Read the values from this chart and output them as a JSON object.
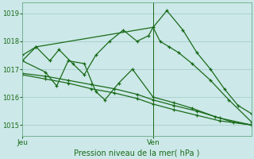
{
  "bg_color": "#cce8e8",
  "grid_color": "#9fc8c8",
  "line_color": "#1a6b1a",
  "xlabel": "Pression niveau de la mer( hPa )",
  "ylim": [
    1014.6,
    1019.4
  ],
  "yticks": [
    1015,
    1016,
    1017,
    1018,
    1019
  ],
  "xlim": [
    0,
    1.0
  ],
  "xtick_labels": [
    "Jeu",
    "Ven"
  ],
  "xtick_positions": [
    0.0,
    0.57
  ],
  "vline_x": 0.57,
  "series": [
    {
      "x": [
        0.0,
        0.06,
        0.57,
        0.63,
        0.7,
        0.76,
        0.82,
        0.88,
        0.94,
        1.0
      ],
      "y": [
        1017.3,
        1017.8,
        1018.5,
        1019.1,
        1018.4,
        1017.6,
        1017.0,
        1016.3,
        1015.7,
        1015.4
      ]
    },
    {
      "x": [
        0.0,
        0.06,
        0.12,
        0.16,
        0.22,
        0.27,
        0.32,
        0.38,
        0.44,
        0.5,
        0.55,
        0.57,
        0.6,
        0.64,
        0.68,
        0.74,
        0.82,
        0.9,
        1.0
      ],
      "y": [
        1017.5,
        1017.8,
        1017.3,
        1017.7,
        1017.2,
        1016.8,
        1017.5,
        1018.0,
        1018.4,
        1018.0,
        1018.2,
        1018.5,
        1018.0,
        1017.8,
        1017.6,
        1017.2,
        1016.6,
        1015.9,
        1015.1
      ]
    },
    {
      "x": [
        0.0,
        0.1,
        0.15,
        0.2,
        0.27,
        0.32,
        0.36,
        0.42,
        0.48,
        0.57,
        0.66,
        0.74,
        0.84,
        0.92,
        1.0
      ],
      "y": [
        1017.3,
        1016.9,
        1016.4,
        1017.3,
        1017.2,
        1016.2,
        1015.9,
        1016.5,
        1017.0,
        1016.0,
        1015.8,
        1015.6,
        1015.3,
        1015.1,
        1015.0
      ]
    },
    {
      "x": [
        0.0,
        0.1,
        0.2,
        0.3,
        0.4,
        0.5,
        0.57,
        0.66,
        0.76,
        0.86,
        1.0
      ],
      "y": [
        1016.85,
        1016.75,
        1016.6,
        1016.45,
        1016.3,
        1016.1,
        1015.9,
        1015.7,
        1015.5,
        1015.25,
        1015.0
      ]
    },
    {
      "x": [
        0.0,
        0.1,
        0.2,
        0.3,
        0.4,
        0.5,
        0.57,
        0.66,
        0.76,
        0.86,
        1.0
      ],
      "y": [
        1016.8,
        1016.65,
        1016.5,
        1016.3,
        1016.15,
        1015.95,
        1015.75,
        1015.55,
        1015.35,
        1015.15,
        1015.0
      ]
    }
  ]
}
